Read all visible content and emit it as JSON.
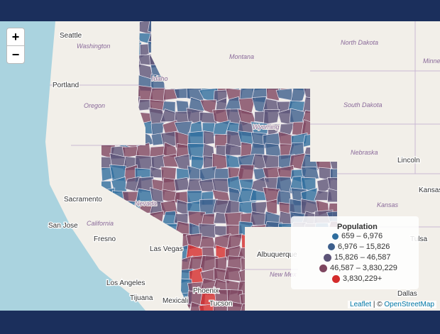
{
  "zoom": {
    "in": "+",
    "out": "−"
  },
  "map_labels": [
    "Seattle",
    "Washington",
    "Montana",
    "North Dakota",
    "Minne",
    "Portland",
    "Oregon",
    "Idaho",
    "South Dakota",
    "Wyoming",
    "Nebraska",
    "Lincoln",
    "Kansas",
    "Kansas",
    "Sacramento",
    "Nevada",
    "San Jose",
    "California",
    "Fresno",
    "Las Vegas",
    "Albuquerque",
    "New Mex",
    "Los Angeles",
    "Tijuana",
    "Mexicali",
    "Phoenix",
    "Tucson",
    "Tulsa",
    "Dallas"
  ],
  "legend": {
    "title": "Population",
    "items": [
      {
        "label": "659 – 6,976",
        "color": "#2f6e9e"
      },
      {
        "label": "6,976 – 15,826",
        "color": "#3d5f8c"
      },
      {
        "label": "15,826 – 46,587",
        "color": "#5d5478"
      },
      {
        "label": "46,587 – 3,830,229",
        "color": "#7e4660"
      },
      {
        "label": "3,830,229+",
        "color": "#d42c2c"
      }
    ]
  },
  "attribution": {
    "leaflet": "Leaflet",
    "separator": " | © ",
    "osm": "OpenStreetMap"
  }
}
